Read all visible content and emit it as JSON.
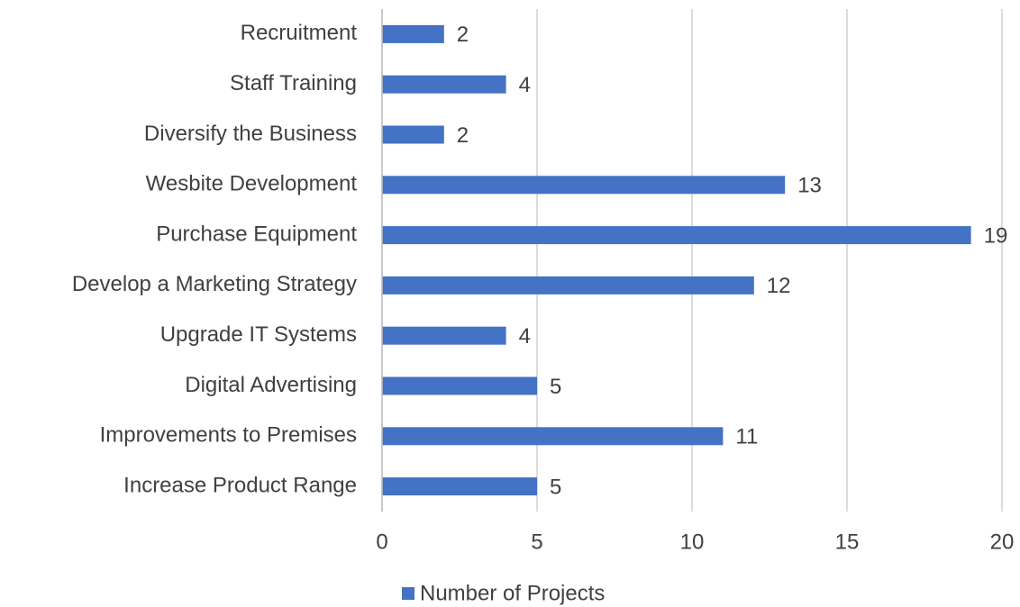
{
  "chart_data": {
    "type": "bar",
    "orientation": "horizontal",
    "categories": [
      "Recruitment",
      "Staff Training",
      "Diversify the Business",
      "Wesbite Development",
      "Purchase Equipment",
      "Develop a Marketing Strategy",
      "Upgrade IT Systems",
      "Digital Advertising",
      "Improvements to Premises",
      "Increase Product Range"
    ],
    "series": [
      {
        "name": "Number of Projects",
        "color": "#4472c4",
        "values": [
          2,
          4,
          2,
          13,
          19,
          12,
          4,
          5,
          11,
          5
        ]
      }
    ],
    "xlim": [
      0,
      20
    ],
    "xticks": [
      0,
      5,
      10,
      15,
      20
    ],
    "grid": true,
    "legend": "bottom"
  }
}
